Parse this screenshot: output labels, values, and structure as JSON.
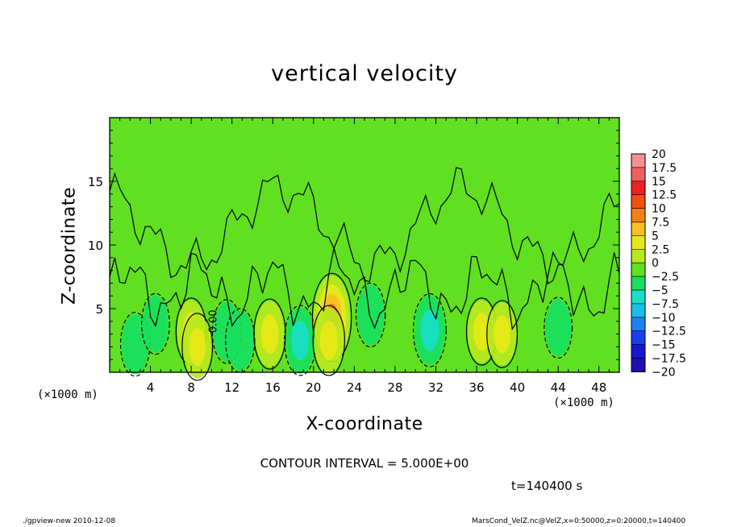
{
  "chart_data": {
    "type": "heatmap",
    "title": "vertical velocity",
    "xlabel": "X-coordinate",
    "ylabel": "Z-coordinate",
    "x_unit_label_left": "(×1000 m)",
    "x_unit_label_right": "(×1000 m)",
    "xlim": [
      0,
      50
    ],
    "ylim": [
      0,
      20
    ],
    "x_ticks": [
      "4",
      "8",
      "12",
      "16",
      "20",
      "24",
      "28",
      "32",
      "36",
      "40",
      "44",
      "48"
    ],
    "y_ticks": [
      "5",
      "10",
      "15"
    ],
    "contour_label": "0.00",
    "colorbar": {
      "labels": [
        "20",
        "17.5",
        "15",
        "12.5",
        "10",
        "7.5",
        "5",
        "2.5",
        "0",
        "−2.5",
        "−5",
        "−7.5",
        "−10",
        "−12.5",
        "−15",
        "−17.5",
        "−20"
      ],
      "colors": [
        "#f59090",
        "#f06060",
        "#ee2020",
        "#f05010",
        "#f58010",
        "#f8c020",
        "#e8e818",
        "#b8e820",
        "#60e020",
        "#18e060",
        "#18e0c8",
        "#18c0e8",
        "#2080f0",
        "#1840f0",
        "#1818d0",
        "#2010b0",
        "#7010b8"
      ]
    },
    "features": [
      {
        "x": 2.5,
        "z": 2.2,
        "w": -3
      },
      {
        "x": 4.5,
        "z": 3.8,
        "w": -2
      },
      {
        "x": 8.0,
        "z": 3.2,
        "w": 4
      },
      {
        "x": 8.6,
        "z": 2.0,
        "w": 4
      },
      {
        "x": 11.5,
        "z": 3.2,
        "w": -3
      },
      {
        "x": 12.8,
        "z": 2.5,
        "w": -3
      },
      {
        "x": 15.7,
        "z": 3.0,
        "w": 5
      },
      {
        "x": 18.7,
        "z": 2.5,
        "w": -5
      },
      {
        "x": 21.8,
        "z": 4.3,
        "w": 11
      },
      {
        "x": 21.5,
        "z": 2.5,
        "w": 5
      },
      {
        "x": 25.6,
        "z": 4.5,
        "w": -3
      },
      {
        "x": 31.4,
        "z": 3.3,
        "w": -6
      },
      {
        "x": 36.5,
        "z": 3.2,
        "w": 4
      },
      {
        "x": 38.5,
        "z": 3.0,
        "w": 4
      },
      {
        "x": 44.0,
        "z": 3.5,
        "w": -2
      }
    ]
  },
  "contour_interval_text": "CONTOUR INTERVAL = 5.000E+00",
  "time_text": "t=140400 s",
  "footer_left": "./gpview-new  2010-12-08",
  "footer_right": "MarsCond_VelZ.nc@VelZ,x=0:50000,z=0:20000,t=140400"
}
